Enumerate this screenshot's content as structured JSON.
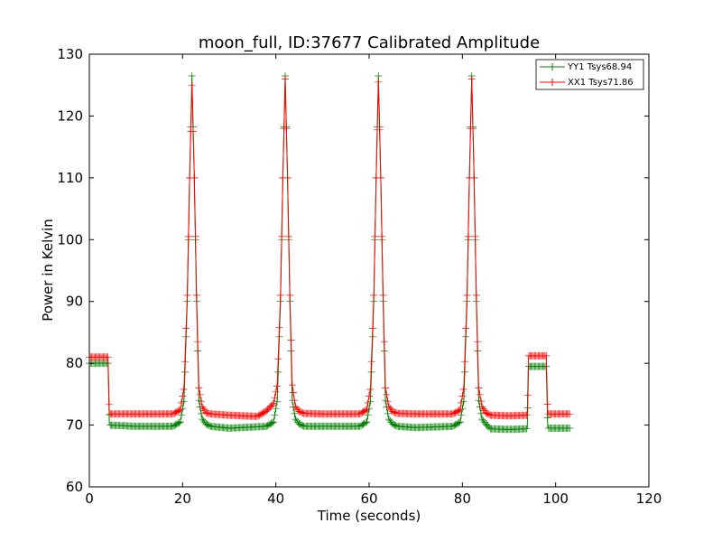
{
  "chart_data": {
    "type": "line",
    "title": "moon_full, ID:37677 Calibrated Amplitude",
    "xlabel": "Time (seconds)",
    "ylabel": "Power in Kelvin",
    "xlim": [
      0,
      120
    ],
    "ylim": [
      60,
      130
    ],
    "xticks": [
      "0",
      "20",
      "40",
      "60",
      "80",
      "100",
      "120"
    ],
    "yticks": [
      "60",
      "70",
      "80",
      "90",
      "100",
      "110",
      "120",
      "130"
    ],
    "grid": false,
    "legend_position": "top-right",
    "marker": "plus",
    "series": [
      {
        "name": "YY1 Tsys68.94",
        "color": "#008000",
        "x": [
          0,
          4,
          4.3,
          10,
          18,
          19.5,
          20.3,
          21,
          21.5,
          22,
          22.5,
          23,
          23.5,
          24.2,
          25,
          26,
          30,
          38,
          39.5,
          40.3,
          41,
          41.5,
          42,
          42.5,
          43,
          43.5,
          44.2,
          45,
          46,
          50,
          58,
          59.5,
          60.3,
          61,
          61.5,
          62,
          62.5,
          63,
          63.5,
          64.2,
          65,
          66,
          70,
          78,
          79.5,
          80.3,
          81,
          81.5,
          82,
          82.5,
          83,
          83.5,
          84.2,
          85,
          86,
          90,
          93.9,
          94.2,
          98,
          98.3,
          103
        ],
        "y": [
          80,
          80,
          70,
          69.8,
          69.8,
          70.5,
          74,
          90,
          110,
          126.5,
          110,
          90,
          74,
          71,
          70.2,
          69.8,
          69.5,
          69.8,
          70.5,
          74,
          90,
          110,
          126.5,
          110,
          90,
          74,
          71,
          70.2,
          69.8,
          69.8,
          69.8,
          70.5,
          74,
          90,
          110,
          126.5,
          110,
          90,
          74,
          71,
          70.2,
          69.8,
          69.6,
          69.8,
          70.5,
          74,
          90,
          110,
          126.5,
          110,
          90,
          74,
          71,
          70.2,
          69.4,
          69.3,
          69.4,
          79.5,
          79.5,
          69.5,
          69.5
        ]
      },
      {
        "name": "XX1 Tsys71.86",
        "color": "#ff0000",
        "x": [
          0,
          4,
          4.3,
          10,
          18,
          19.5,
          20.3,
          21,
          21.5,
          22,
          22.5,
          23,
          23.5,
          24.2,
          25,
          26,
          30,
          36,
          38,
          39.5,
          40.3,
          41,
          41.5,
          42,
          42.5,
          43,
          43.5,
          44.2,
          45,
          46,
          50,
          58,
          59.5,
          60.3,
          61,
          61.5,
          62,
          62.5,
          63,
          63.5,
          64.2,
          65,
          66,
          70,
          78,
          79.5,
          80.3,
          81,
          81.5,
          82,
          82.5,
          83,
          83.5,
          84.2,
          85,
          86,
          90,
          93.9,
          94.2,
          98,
          98.3,
          103
        ],
        "y": [
          81,
          81,
          71.8,
          71.8,
          71.8,
          72.5,
          76,
          91,
          110,
          125,
          110,
          91,
          76,
          73,
          72,
          71.8,
          71.6,
          71.4,
          72.3,
          73.5,
          76.5,
          91,
          110,
          126,
          110,
          91,
          76.5,
          73,
          72.2,
          71.9,
          71.8,
          71.8,
          72.5,
          76,
          91,
          110,
          125.5,
          110,
          91,
          76,
          73,
          72.2,
          71.9,
          71.8,
          71.8,
          72.5,
          76,
          91,
          110,
          126,
          110,
          91,
          76,
          73,
          72,
          71.6,
          71.5,
          71.6,
          81.2,
          81.2,
          71.8,
          71.8
        ]
      }
    ]
  }
}
